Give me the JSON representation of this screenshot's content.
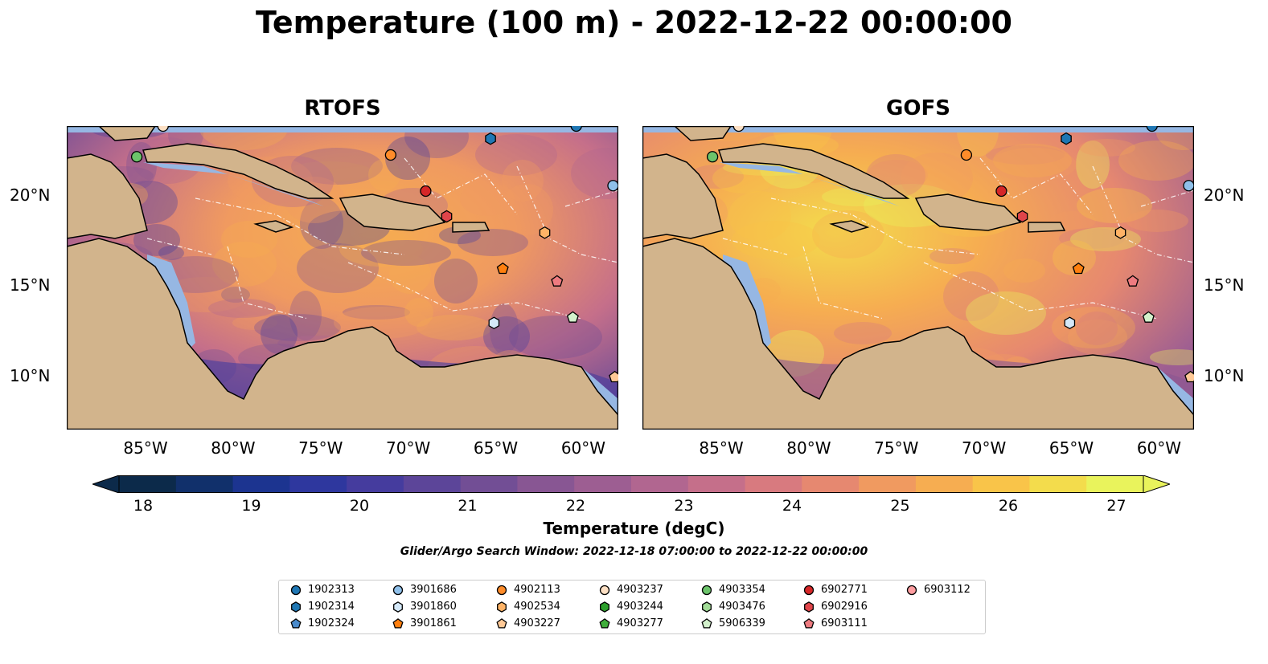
{
  "title": "Temperature (100 m) - 2022-12-22 00:00:00",
  "panels": [
    {
      "name": "RTOFS"
    },
    {
      "name": "GOFS"
    }
  ],
  "lon_ticks": [
    "85°W",
    "80°W",
    "75°W",
    "70°W",
    "65°W",
    "60°W"
  ],
  "lat_ticks": [
    "20°N",
    "15°N",
    "10°N"
  ],
  "colorbar": {
    "title": "Temperature (degC)",
    "ticks": [
      "18",
      "19",
      "20",
      "21",
      "22",
      "23",
      "24",
      "25",
      "26",
      "27"
    ],
    "colors": [
      "#0c2a4a",
      "#11306b",
      "#1c3490",
      "#2e379e",
      "#453c9e",
      "#5c4599",
      "#724e95",
      "#885693",
      "#9d5e92",
      "#b16690",
      "#c56f8a",
      "#d87a7f",
      "#e68870",
      "#f09a60",
      "#f6ad51",
      "#f9c449",
      "#f3dc4c",
      "#e9f35c"
    ]
  },
  "search_window": "Glider/Argo Search Window: 2022-12-18 07:00:00 to 2022-12-22 00:00:00",
  "legend_items": [
    {
      "id": "1902313",
      "shape": "circle",
      "color": "#1f77b4"
    },
    {
      "id": "1902314",
      "shape": "hexagon",
      "color": "#1f77b4"
    },
    {
      "id": "1902324",
      "shape": "pentagon",
      "color": "#4a8bcc"
    },
    {
      "id": "3901686",
      "shape": "circle",
      "color": "#8fc0ea"
    },
    {
      "id": "3901860",
      "shape": "hexagon",
      "color": "#d4e8f8"
    },
    {
      "id": "3901861",
      "shape": "pentagon",
      "color": "#ff7f0e"
    },
    {
      "id": "4902113",
      "shape": "circle",
      "color": "#ff8c2a"
    },
    {
      "id": "4902534",
      "shape": "hexagon",
      "color": "#ffb366"
    },
    {
      "id": "4903227",
      "shape": "pentagon",
      "color": "#ffc996"
    },
    {
      "id": "4903237",
      "shape": "circle",
      "color": "#fde0c4"
    },
    {
      "id": "4903244",
      "shape": "hexagon",
      "color": "#2ca02c"
    },
    {
      "id": "4903277",
      "shape": "pentagon",
      "color": "#3fae3a"
    },
    {
      "id": "4903354",
      "shape": "circle",
      "color": "#6cc46b"
    },
    {
      "id": "4903476",
      "shape": "hexagon",
      "color": "#a2dc97"
    },
    {
      "id": "5906339",
      "shape": "pentagon",
      "color": "#d3f1cc"
    },
    {
      "id": "6902771",
      "shape": "circle",
      "color": "#d62728"
    },
    {
      "id": "6902916",
      "shape": "hexagon",
      "color": "#e0454a"
    },
    {
      "id": "6903111",
      "shape": "pentagon",
      "color": "#ee7b80"
    },
    {
      "id": "6903112",
      "shape": "circle",
      "color": "#ff9da0"
    }
  ],
  "map_markers": [
    {
      "id": "6902771",
      "lon": -69.0,
      "lat": 20.2
    },
    {
      "id": "6902916",
      "lon": -67.8,
      "lat": 18.8
    },
    {
      "id": "4902113",
      "lon": -71.0,
      "lat": 22.2
    },
    {
      "id": "4903354",
      "lon": -85.5,
      "lat": 22.1
    },
    {
      "id": "1902314",
      "lon": -65.3,
      "lat": 23.1
    },
    {
      "id": "3901686",
      "lon": -58.3,
      "lat": 20.5
    },
    {
      "id": "1902313",
      "lon": -60.4,
      "lat": 23.8
    },
    {
      "id": "4903237",
      "lon": -84.0,
      "lat": 23.8
    },
    {
      "id": "3901861",
      "lon": -64.6,
      "lat": 15.9
    },
    {
      "id": "3901860",
      "lon": -65.1,
      "lat": 12.9
    },
    {
      "id": "5906339",
      "lon": -60.6,
      "lat": 13.2
    },
    {
      "id": "4902534",
      "lon": -62.2,
      "lat": 17.9
    },
    {
      "id": "6903111",
      "lon": -61.5,
      "lat": 15.2
    },
    {
      "id": "4903227",
      "lon": -58.2,
      "lat": 9.9
    }
  ],
  "map_extent": {
    "lon": [
      -89.5,
      -58.0
    ],
    "lat": [
      7.0,
      23.8
    ]
  },
  "colors": {
    "land": "#d2b48c",
    "shelf": "#96b7e3",
    "deep_pacific": "#0b2233",
    "coast": "#000000",
    "eez": "#ffffff"
  }
}
